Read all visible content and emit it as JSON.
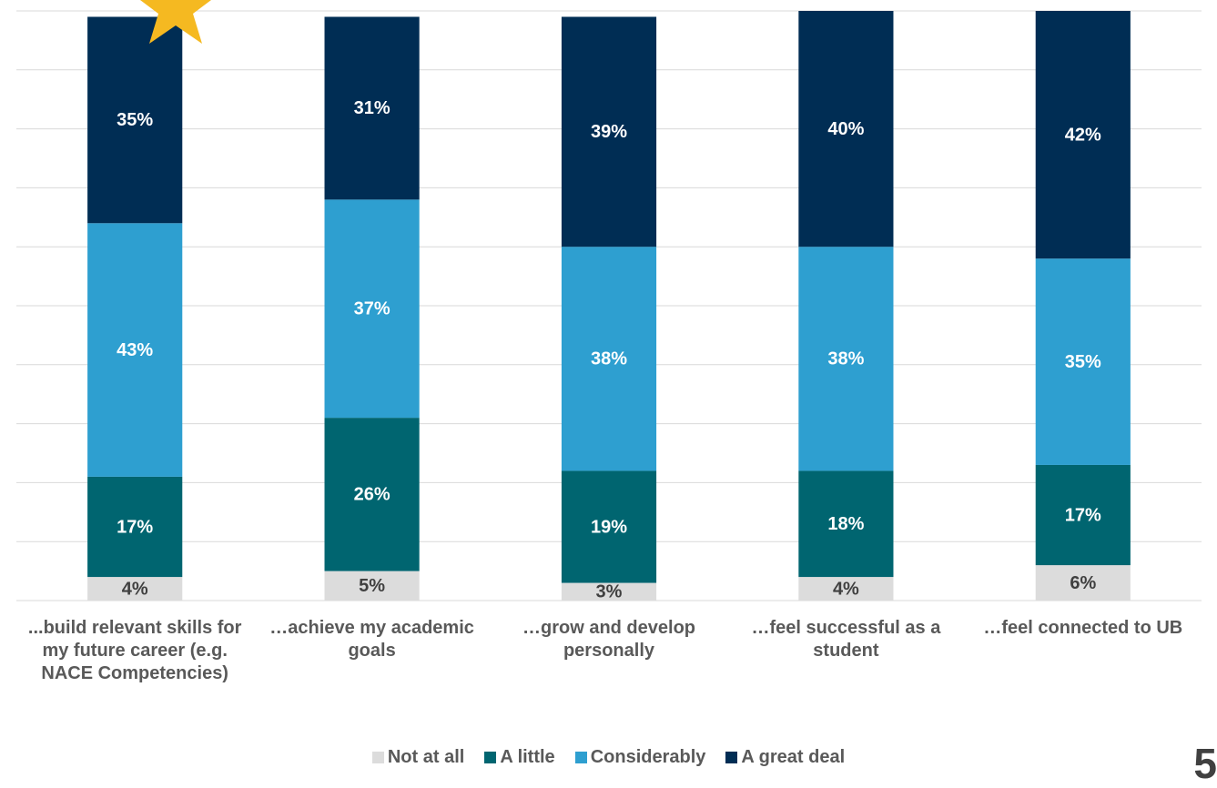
{
  "chart_data": {
    "type": "stacked-bar",
    "categories": [
      "...build relevant skills for my future career (e.g. NACE Competencies)",
      "…achieve my academic goals",
      "…grow and develop personally",
      "…feel successful as a student",
      "…feel connected to UB"
    ],
    "series": [
      {
        "name": "Not at all",
        "color": "#dcdcdc",
        "values": [
          4,
          5,
          3,
          4,
          6
        ],
        "value_labels": [
          "4%",
          "5%",
          "3%",
          "4%",
          "6%"
        ]
      },
      {
        "name": "A little",
        "color": "#006570",
        "values": [
          17,
          26,
          19,
          18,
          17
        ],
        "value_labels": [
          "17%",
          "26%",
          "19%",
          "18%",
          "17%"
        ]
      },
      {
        "name": "Considerably",
        "color": "#2e9fd0",
        "values": [
          43,
          37,
          38,
          38,
          35
        ],
        "value_labels": [
          "43%",
          "37%",
          "38%",
          "38%",
          "35%"
        ]
      },
      {
        "name": "A great deal",
        "color": "#002d54",
        "values": [
          35,
          31,
          39,
          40,
          42
        ],
        "value_labels": [
          "35%",
          "31%",
          "39%",
          "40%",
          "42%"
        ]
      }
    ],
    "ylim": [
      0,
      100
    ],
    "yticks": [
      0,
      10,
      20,
      30,
      40,
      50,
      60,
      70,
      80,
      90,
      100
    ],
    "grid": true
  },
  "page_number": "5"
}
